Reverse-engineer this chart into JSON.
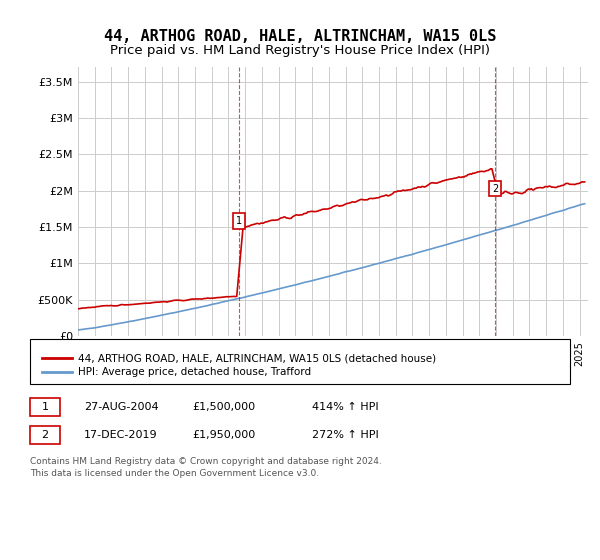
{
  "title": "44, ARTHOG ROAD, HALE, ALTRINCHAM, WA15 0LS",
  "subtitle": "Price paid vs. HM Land Registry's House Price Index (HPI)",
  "ylabel_ticks": [
    "£0",
    "£500K",
    "£1M",
    "£1.5M",
    "£2M",
    "£2.5M",
    "£3M",
    "£3.5M"
  ],
  "ytick_values": [
    0,
    500000,
    1000000,
    1500000,
    2000000,
    2500000,
    3000000,
    3500000
  ],
  "ylim": [
    0,
    3700000
  ],
  "xlim_start": 1995.0,
  "xlim_end": 2025.5,
  "title_fontsize": 11,
  "subtitle_fontsize": 9.5,
  "transaction1_date": 2004.65,
  "transaction1_price": 1500000,
  "transaction2_date": 2019.96,
  "transaction2_price": 1950000,
  "legend_line1": "44, ARTHOG ROAD, HALE, ALTRINCHAM, WA15 0LS (detached house)",
  "legend_line2": "HPI: Average price, detached house, Trafford",
  "table_row1": [
    "1",
    "27-AUG-2004",
    "£1,500,000",
    "414% ↑ HPI"
  ],
  "table_row2": [
    "2",
    "17-DEC-2019",
    "£1,950,000",
    "272% ↑ HPI"
  ],
  "footer1": "Contains HM Land Registry data © Crown copyright and database right 2024.",
  "footer2": "This data is licensed under the Open Government Licence v3.0.",
  "red_color": "#cc0000",
  "blue_color": "#6699cc",
  "bg_color": "#ffffff",
  "grid_color": "#cccccc"
}
